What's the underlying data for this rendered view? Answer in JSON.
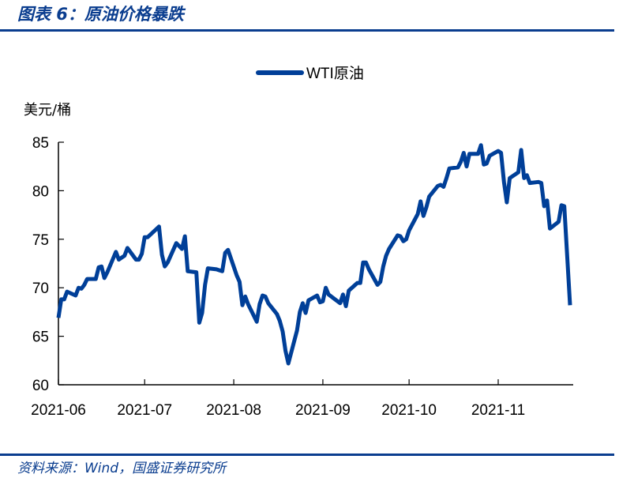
{
  "header": {
    "title": "图表 6：原油价格暴跌"
  },
  "footer": {
    "source": "资料来源：Wind，国盛证券研究所"
  },
  "colors": {
    "accent": "#0a3d8f",
    "line": "#003f98"
  },
  "chart_data": {
    "type": "line",
    "title": "",
    "ylabel": "美元/桶",
    "xlabel": "",
    "ylim": [
      60,
      85
    ],
    "yticks": [
      "60",
      "65",
      "70",
      "75",
      "80",
      "85"
    ],
    "xticks": [
      "2021-06",
      "2021-07",
      "2021-08",
      "2021-09",
      "2021-10",
      "2021-11"
    ],
    "legend": {
      "position": "top-center",
      "entries": [
        "WTI原油"
      ]
    },
    "series": [
      {
        "name": "WTI原油",
        "points": [
          [
            "2021-06-01",
            66.9
          ],
          [
            "2021-06-02",
            68.8
          ],
          [
            "2021-06-03",
            68.8
          ],
          [
            "2021-06-04",
            69.6
          ],
          [
            "2021-06-07",
            69.2
          ],
          [
            "2021-06-08",
            70.0
          ],
          [
            "2021-06-09",
            69.9
          ],
          [
            "2021-06-10",
            70.3
          ],
          [
            "2021-06-11",
            70.9
          ],
          [
            "2021-06-14",
            70.9
          ],
          [
            "2021-06-15",
            72.1
          ],
          [
            "2021-06-16",
            72.2
          ],
          [
            "2021-06-17",
            71.0
          ],
          [
            "2021-06-18",
            71.6
          ],
          [
            "2021-06-21",
            73.7
          ],
          [
            "2021-06-22",
            72.9
          ],
          [
            "2021-06-23",
            73.1
          ],
          [
            "2021-06-24",
            73.3
          ],
          [
            "2021-06-25",
            74.1
          ],
          [
            "2021-06-28",
            72.9
          ],
          [
            "2021-06-29",
            72.9
          ],
          [
            "2021-06-30",
            73.5
          ],
          [
            "2021-07-01",
            75.2
          ],
          [
            "2021-07-02",
            75.2
          ],
          [
            "2021-07-06",
            76.3
          ],
          [
            "2021-07-07",
            73.4
          ],
          [
            "2021-07-08",
            72.2
          ],
          [
            "2021-07-09",
            72.6
          ],
          [
            "2021-07-12",
            74.6
          ],
          [
            "2021-07-13",
            74.3
          ],
          [
            "2021-07-14",
            74.0
          ],
          [
            "2021-07-15",
            75.3
          ],
          [
            "2021-07-16",
            71.7
          ],
          [
            "2021-07-19",
            71.6
          ],
          [
            "2021-07-20",
            66.4
          ],
          [
            "2021-07-21",
            67.4
          ],
          [
            "2021-07-22",
            70.3
          ],
          [
            "2021-07-23",
            72.0
          ],
          [
            "2021-07-26",
            71.9
          ],
          [
            "2021-07-27",
            71.8
          ],
          [
            "2021-07-28",
            71.7
          ],
          [
            "2021-07-29",
            73.6
          ],
          [
            "2021-07-30",
            73.9
          ],
          [
            "2021-08-02",
            71.3
          ],
          [
            "2021-08-03",
            70.6
          ],
          [
            "2021-08-04",
            68.2
          ],
          [
            "2021-08-05",
            69.1
          ],
          [
            "2021-08-06",
            68.3
          ],
          [
            "2021-08-09",
            66.5
          ],
          [
            "2021-08-10",
            68.3
          ],
          [
            "2021-08-11",
            69.2
          ],
          [
            "2021-08-12",
            69.1
          ],
          [
            "2021-08-13",
            68.4
          ],
          [
            "2021-08-16",
            67.3
          ],
          [
            "2021-08-17",
            66.6
          ],
          [
            "2021-08-18",
            65.5
          ],
          [
            "2021-08-19",
            63.5
          ],
          [
            "2021-08-20",
            62.2
          ],
          [
            "2021-08-23",
            65.6
          ],
          [
            "2021-08-24",
            67.5
          ],
          [
            "2021-08-25",
            68.4
          ],
          [
            "2021-08-26",
            67.4
          ],
          [
            "2021-08-27",
            68.7
          ],
          [
            "2021-08-30",
            69.2
          ],
          [
            "2021-08-31",
            68.5
          ],
          [
            "2021-09-01",
            68.6
          ],
          [
            "2021-09-02",
            70.0
          ],
          [
            "2021-09-03",
            69.3
          ],
          [
            "2021-09-07",
            68.4
          ],
          [
            "2021-09-08",
            69.3
          ],
          [
            "2021-09-09",
            68.1
          ],
          [
            "2021-09-10",
            69.7
          ],
          [
            "2021-09-13",
            70.5
          ],
          [
            "2021-09-14",
            70.5
          ],
          [
            "2021-09-15",
            72.6
          ],
          [
            "2021-09-16",
            72.6
          ],
          [
            "2021-09-17",
            71.9
          ],
          [
            "2021-09-20",
            70.3
          ],
          [
            "2021-09-21",
            70.6
          ],
          [
            "2021-09-22",
            72.2
          ],
          [
            "2021-09-23",
            73.3
          ],
          [
            "2021-09-24",
            74.0
          ],
          [
            "2021-09-27",
            75.4
          ],
          [
            "2021-09-28",
            75.3
          ],
          [
            "2021-09-29",
            74.8
          ],
          [
            "2021-09-30",
            75.0
          ],
          [
            "2021-10-01",
            75.9
          ],
          [
            "2021-10-04",
            77.6
          ],
          [
            "2021-10-05",
            78.9
          ],
          [
            "2021-10-06",
            77.4
          ],
          [
            "2021-10-07",
            78.3
          ],
          [
            "2021-10-08",
            79.4
          ],
          [
            "2021-10-11",
            80.5
          ],
          [
            "2021-10-12",
            80.6
          ],
          [
            "2021-10-13",
            80.4
          ],
          [
            "2021-10-14",
            81.3
          ],
          [
            "2021-10-15",
            82.3
          ],
          [
            "2021-10-18",
            82.4
          ],
          [
            "2021-10-19",
            83.0
          ],
          [
            "2021-10-20",
            83.9
          ],
          [
            "2021-10-21",
            82.5
          ],
          [
            "2021-10-22",
            83.8
          ],
          [
            "2021-10-25",
            83.8
          ],
          [
            "2021-10-26",
            84.7
          ],
          [
            "2021-10-27",
            82.7
          ],
          [
            "2021-10-28",
            82.8
          ],
          [
            "2021-10-29",
            83.6
          ],
          [
            "2021-11-01",
            84.1
          ],
          [
            "2021-11-02",
            83.9
          ],
          [
            "2021-11-03",
            80.9
          ],
          [
            "2021-11-04",
            78.8
          ],
          [
            "2021-11-05",
            81.3
          ],
          [
            "2021-11-08",
            81.9
          ],
          [
            "2021-11-09",
            84.2
          ],
          [
            "2021-11-10",
            81.3
          ],
          [
            "2021-11-11",
            81.6
          ],
          [
            "2021-11-12",
            80.8
          ],
          [
            "2021-11-15",
            80.9
          ],
          [
            "2021-11-16",
            80.8
          ],
          [
            "2021-11-17",
            78.4
          ],
          [
            "2021-11-18",
            79.0
          ],
          [
            "2021-11-19",
            76.1
          ],
          [
            "2021-11-22",
            76.8
          ],
          [
            "2021-11-23",
            78.5
          ],
          [
            "2021-11-24",
            78.4
          ],
          [
            "2021-11-26",
            68.2
          ]
        ]
      }
    ]
  }
}
